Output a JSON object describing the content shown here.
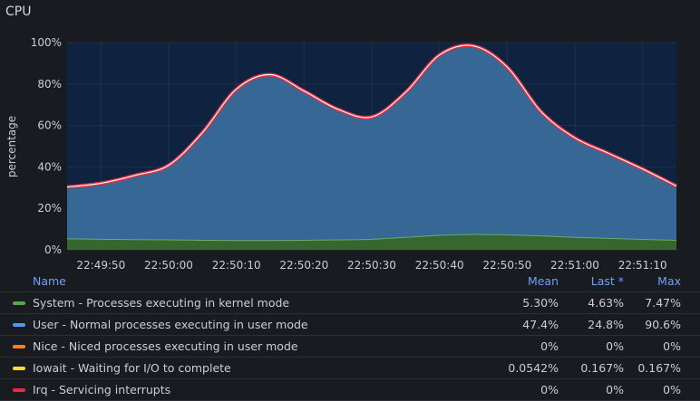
{
  "panel": {
    "title": "CPU"
  },
  "chart_data": {
    "type": "area",
    "ylabel": "percentage",
    "ylim": [
      0,
      100
    ],
    "yticks": [
      "0%",
      "20%",
      "40%",
      "60%",
      "80%",
      "100%"
    ],
    "xticks": [
      "22:49:50",
      "22:50:00",
      "22:50:10",
      "22:50:20",
      "22:50:30",
      "22:50:40",
      "22:50:50",
      "22:51:00",
      "22:51:10"
    ],
    "x": [
      "22:49:45",
      "22:49:50",
      "22:49:55",
      "22:50:00",
      "22:50:05",
      "22:50:10",
      "22:50:15",
      "22:50:20",
      "22:50:25",
      "22:50:30",
      "22:50:35",
      "22:50:40",
      "22:50:45",
      "22:50:50",
      "22:50:55",
      "22:51:00",
      "22:51:05",
      "22:51:10",
      "22:51:15"
    ],
    "series": [
      {
        "name": "System - Processes executing in kernel mode",
        "color": "#73bf69",
        "values": [
          5.3,
          5.1,
          4.9,
          4.8,
          4.6,
          4.5,
          4.5,
          4.6,
          4.8,
          5.1,
          6.0,
          7.0,
          7.4,
          7.2,
          6.7,
          6.0,
          5.5,
          5.0,
          4.6
        ]
      },
      {
        "name": "User - Normal processes executing in user mode",
        "color": "#5794f2",
        "values": [
          25,
          27,
          31,
          36,
          52,
          73,
          80,
          72,
          63,
          59,
          70,
          87,
          91,
          81,
          60,
          48,
          41,
          34,
          26
        ]
      },
      {
        "name": "Nice - Niced processes executing in user mode",
        "color": "#ff7f1f",
        "values": [
          0,
          0,
          0,
          0,
          0,
          0,
          0,
          0,
          0,
          0,
          0,
          0,
          0,
          0,
          0,
          0,
          0,
          0,
          0
        ]
      },
      {
        "name": "Iowait - Waiting for I/O to complete",
        "color": "#fade2a",
        "values": [
          0,
          0,
          0,
          0,
          0,
          0,
          0,
          0,
          0,
          0,
          0,
          0,
          0,
          0,
          0,
          0,
          0,
          0,
          0.167
        ]
      },
      {
        "name": "Irq - Servicing interrupts",
        "color": "#f2495c",
        "values": [
          0,
          0,
          0,
          0,
          0,
          0,
          0,
          0,
          0,
          0,
          0,
          0,
          0,
          0,
          0,
          0,
          0,
          0,
          0
        ]
      }
    ]
  },
  "legend": {
    "headers": {
      "name": "Name",
      "mean": "Mean",
      "last": "Last *",
      "max": "Max"
    },
    "rows": [
      {
        "name": "System - Processes executing in kernel mode",
        "color": "#56a64b",
        "mean": "5.30%",
        "last": "4.63%",
        "max": "7.47%"
      },
      {
        "name": "User - Normal processes executing in user mode",
        "color": "#5794f2",
        "mean": "47.4%",
        "last": "24.8%",
        "max": "90.6%"
      },
      {
        "name": "Nice - Niced processes executing in user mode",
        "color": "#ff7f1f",
        "mean": "0%",
        "last": "0%",
        "max": "0%"
      },
      {
        "name": "Iowait - Waiting for I/O to complete",
        "color": "#fade2a",
        "mean": "0.0542%",
        "last": "0.167%",
        "max": "0.167%"
      },
      {
        "name": "Irq - Servicing interrupts",
        "color": "#e02f44",
        "mean": "0%",
        "last": "0%",
        "max": "0%"
      }
    ]
  }
}
